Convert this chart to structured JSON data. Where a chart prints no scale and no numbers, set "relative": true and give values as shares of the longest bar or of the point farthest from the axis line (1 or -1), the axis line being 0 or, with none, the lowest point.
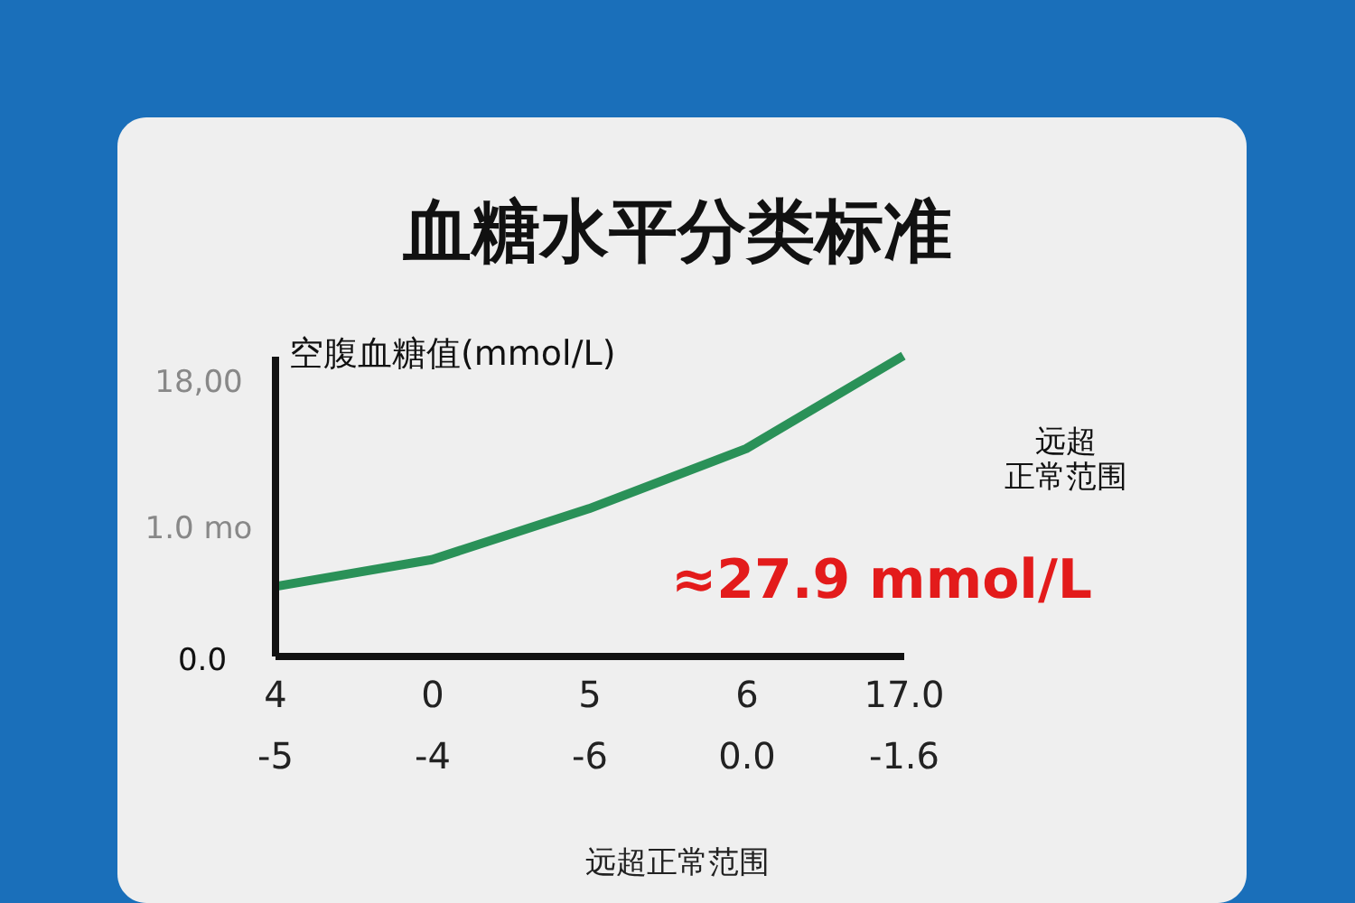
{
  "chart_data": {
    "type": "line",
    "relative": true,
    "title": "血糖水平分类标准",
    "ylabel": "空腹血糖值(mmol/L)",
    "categories": [
      "4\n-5",
      "0\n-4",
      "5\n-6",
      "6\n0.0",
      "17.0\n-1.6"
    ],
    "series": [
      {
        "color": "#2a9158",
        "values": [
          0.23,
          0.32,
          0.49,
          0.69,
          1
        ]
      }
    ],
    "annotations": [
      "≈27.9 mmol/L",
      "远超正常范围",
      "远超正常范围",
      "18,00",
      "1.0 mo",
      "0.0"
    ],
    "legend": false,
    "marker": "none",
    "line_style": "solid"
  }
}
